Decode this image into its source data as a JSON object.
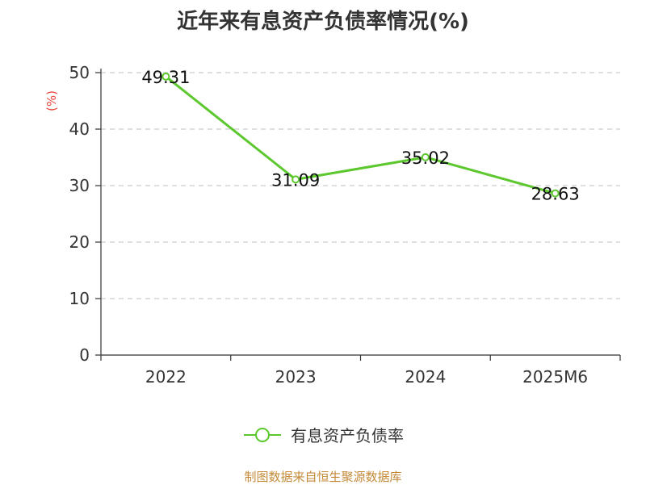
{
  "chart_data": {
    "type": "line",
    "title": "近年来有息资产负债率情况(%)",
    "ylabel": "(%)",
    "xlabel": "",
    "categories": [
      "2022",
      "2023",
      "2024",
      "2025M6"
    ],
    "y_ticks": [
      "0",
      "10",
      "20",
      "30",
      "40",
      "50"
    ],
    "ylim": [
      0,
      50
    ],
    "grid": "horizontal dashed",
    "legend_position": "bottom",
    "series": [
      {
        "name": "有息资产负债率",
        "values": [
          49.31,
          31.09,
          35.02,
          28.63
        ],
        "labels": [
          "49.31",
          "31.09",
          "35.02",
          "28.63"
        ],
        "color": "#5cc82e"
      }
    ]
  },
  "footer": {
    "source": "制图数据来自恒生聚源数据库"
  }
}
